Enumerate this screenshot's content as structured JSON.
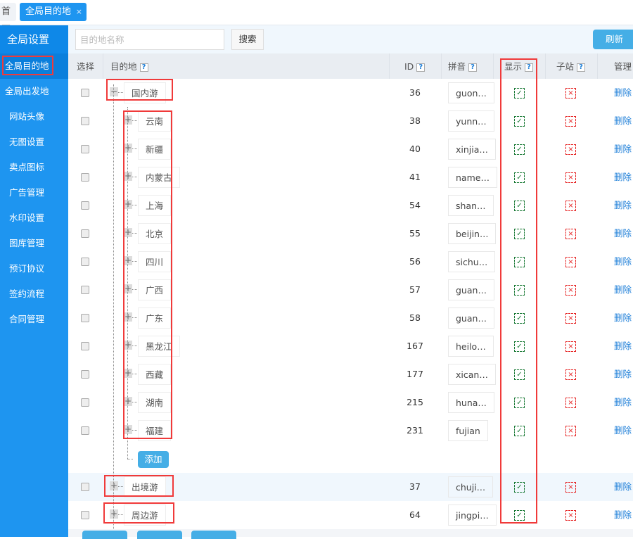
{
  "tabs": {
    "home": "首页",
    "active": "全局目的地",
    "close": "×"
  },
  "sidebar": {
    "title": "全局设置",
    "items": [
      "全局目的地",
      "全局出发地",
      "网站头像",
      "无图设置",
      "卖点图标",
      "广告管理",
      "水印设置",
      "图库管理",
      "预订协议",
      "签约流程",
      "合同管理"
    ]
  },
  "toolbar": {
    "search_placeholder": "目的地名称",
    "search_label": "搜索",
    "refresh_label": "刷新"
  },
  "columns": {
    "select": "选择",
    "dest": "目的地",
    "id": "ID",
    "pinyin": "拼音",
    "show": "显示",
    "substation": "子站",
    "manage": "管理"
  },
  "help": "?",
  "rows": [
    {
      "name": "国内游",
      "id": "36",
      "pinyin": "guon…",
      "level": 0,
      "toggle": "−"
    },
    {
      "name": "云南",
      "id": "38",
      "pinyin": "yunn…",
      "level": 1,
      "toggle": "+"
    },
    {
      "name": "新疆",
      "id": "40",
      "pinyin": "xinjia…",
      "level": 1,
      "toggle": "+"
    },
    {
      "name": "内蒙古",
      "id": "41",
      "pinyin": "name…",
      "level": 1,
      "toggle": "+"
    },
    {
      "name": "上海",
      "id": "54",
      "pinyin": "shan…",
      "level": 1,
      "toggle": "+"
    },
    {
      "name": "北京",
      "id": "55",
      "pinyin": "beijin…",
      "level": 1,
      "toggle": "+"
    },
    {
      "name": "四川",
      "id": "56",
      "pinyin": "sichu…",
      "level": 1,
      "toggle": "+"
    },
    {
      "name": "广西",
      "id": "57",
      "pinyin": "guan…",
      "level": 1,
      "toggle": "+"
    },
    {
      "name": "广东",
      "id": "58",
      "pinyin": "guan…",
      "level": 1,
      "toggle": "+"
    },
    {
      "name": "黑龙江",
      "id": "167",
      "pinyin": "heilo…",
      "level": 1,
      "toggle": "+"
    },
    {
      "name": "西藏",
      "id": "177",
      "pinyin": "xican…",
      "level": 1,
      "toggle": "+"
    },
    {
      "name": "湖南",
      "id": "215",
      "pinyin": "huna…",
      "level": 1,
      "toggle": "+"
    },
    {
      "name": "福建",
      "id": "231",
      "pinyin": "fujian",
      "level": 1,
      "toggle": "+"
    },
    {
      "name": "出境游",
      "id": "37",
      "pinyin": "chuji…",
      "level": 0,
      "toggle": "+",
      "alt": true
    },
    {
      "name": "周边游",
      "id": "64",
      "pinyin": "jingpi…",
      "level": 0,
      "toggle": "+"
    }
  ],
  "row_show": "✓",
  "row_sub": "×",
  "delete_label": "删除",
  "add_label": "添加",
  "colors": {
    "sidebar": "#1e95f0",
    "accent": "#45aee6",
    "show_icon": "#1a7a36",
    "sub_icon": "#e52020",
    "annotation": "#f03a3a",
    "link": "#1e7fd8"
  }
}
